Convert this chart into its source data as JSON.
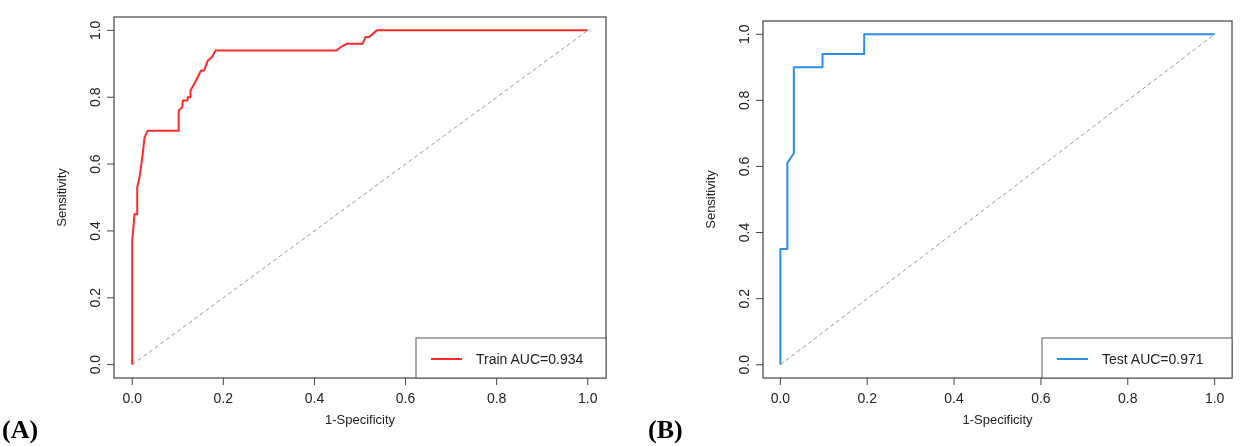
{
  "chart_data": [
    {
      "type": "line",
      "xlabel": "1-Specificity",
      "ylabel": "Sensitivity",
      "xlim": [
        -0.04,
        1.04
      ],
      "ylim": [
        -0.04,
        1.04
      ],
      "xticks": [
        {
          "value": 0,
          "label": "0.0"
        },
        {
          "value": 0.2,
          "label": "0.2"
        },
        {
          "value": 0.4,
          "label": "0.4"
        },
        {
          "value": 0.6,
          "label": "0.6"
        },
        {
          "value": 0.8,
          "label": "0.8"
        },
        {
          "value": 1,
          "label": "1.0"
        }
      ],
      "yticks": [
        {
          "value": 0,
          "label": "0.0"
        },
        {
          "value": 0.2,
          "label": "0.2"
        },
        {
          "value": 0.4,
          "label": "0.4"
        },
        {
          "value": 0.6,
          "label": "0.6"
        },
        {
          "value": 0.8,
          "label": "0.8"
        },
        {
          "value": 1,
          "label": "1.0"
        }
      ],
      "grid": false,
      "legend": "bottom right",
      "annotations": [
        "(A)"
      ],
      "series": [
        {
          "name": "Train AUC=0.934",
          "color": "#ff2a2a",
          "x": [
            0,
            0,
            0.005,
            0.011,
            0.011,
            0.016,
            0.023,
            0.027,
            0.034,
            0.102,
            0.102,
            0.11,
            0.111,
            0.121,
            0.122,
            0.128,
            0.128,
            0.14,
            0.151,
            0.158,
            0.166,
            0.175,
            0.183,
            0.449,
            0.458,
            0.471,
            0.506,
            0.512,
            0.52,
            0.537,
            1
          ],
          "values": [
            0,
            0.37,
            0.45,
            0.45,
            0.53,
            0.56,
            0.63,
            0.68,
            0.7,
            0.7,
            0.76,
            0.77,
            0.79,
            0.79,
            0.8,
            0.8,
            0.82,
            0.85,
            0.88,
            0.88,
            0.91,
            0.92,
            0.94,
            0.94,
            0.95,
            0.96,
            0.96,
            0.98,
            0.98,
            1,
            1
          ]
        },
        {
          "color": "#999999",
          "line_style": "dashed",
          "x": [
            0,
            1
          ],
          "values": [
            0,
            1
          ]
        }
      ]
    },
    {
      "type": "line",
      "xlabel": "1-Specificity",
      "ylabel": "Sensitivity",
      "xlim": [
        -0.04,
        1.04
      ],
      "ylim": [
        -0.04,
        1.04
      ],
      "xticks": [
        {
          "value": 0,
          "label": "0.0"
        },
        {
          "value": 0.2,
          "label": "0.2"
        },
        {
          "value": 0.4,
          "label": "0.4"
        },
        {
          "value": 0.6,
          "label": "0.6"
        },
        {
          "value": 0.8,
          "label": "0.8"
        },
        {
          "value": 1,
          "label": "1.0"
        }
      ],
      "yticks": [
        {
          "value": 0,
          "label": "0.0"
        },
        {
          "value": 0.2,
          "label": "0.2"
        },
        {
          "value": 0.4,
          "label": "0.4"
        },
        {
          "value": 0.6,
          "label": "0.6"
        },
        {
          "value": 0.8,
          "label": "0.8"
        },
        {
          "value": 1,
          "label": "1.0"
        }
      ],
      "grid": false,
      "legend": "bottom right",
      "annotations": [
        "(B)"
      ],
      "series": [
        {
          "name": "Test AUC=0.971",
          "color": "#2b8ff0",
          "x": [
            0,
            0,
            0.016,
            0.016,
            0.031,
            0.031,
            0.097,
            0.097,
            0.193,
            0.193,
            1
          ],
          "values": [
            0,
            0.35,
            0.35,
            0.61,
            0.64,
            0.9,
            0.9,
            0.94,
            0.94,
            1,
            1
          ]
        },
        {
          "color": "#999999",
          "line_style": "dashed",
          "x": [
            0,
            1
          ],
          "values": [
            0,
            1
          ]
        }
      ]
    }
  ]
}
